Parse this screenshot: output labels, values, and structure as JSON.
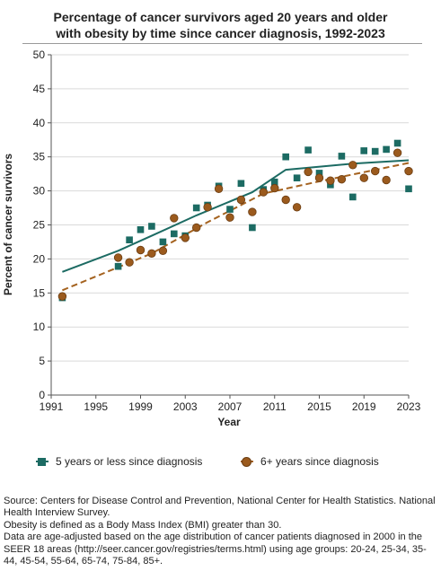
{
  "title_line1": "Percentage of cancer survivors aged 20 years and older",
  "title_line2": "with obesity by time since cancer diagnosis, 1992-2023",
  "legend": {
    "series1": "5 years or less since diagnosis",
    "series2": "6+ years since diagnosis"
  },
  "notes": [
    "Source: Centers for Disease Control and Prevention, National Center for Health Statistics. National Health Interview Survey.",
    "Obesity is defined as a Body Mass Index (BMI) greater than 30.",
    "Data are age-adjusted based on the age distribution of cancer patients diagnosed in 2000 in the SEER 18 areas (http://seer.cancer.gov/registries/terms.html) using age groups: 20-24, 25-34, 35-44, 45-54, 55-64, 65-74, 75-84, 85+."
  ],
  "colors": {
    "series1": "#1c6b63",
    "series2": "#9b5a1d",
    "series2_trend": "#a4621f"
  },
  "chart_data": {
    "type": "scatter",
    "title": "Percentage of cancer survivors aged 20 years and older with obesity by time since cancer diagnosis, 1992-2023",
    "xlabel": "Year",
    "ylabel": "Percent of cancer survivors",
    "xlim": [
      1991,
      2023
    ],
    "ylim": [
      0,
      50
    ],
    "xticks": [
      1991,
      1995,
      1999,
      2003,
      2007,
      2011,
      2015,
      2019,
      2023
    ],
    "yticks": [
      0,
      5,
      10,
      15,
      20,
      25,
      30,
      35,
      40,
      45,
      50
    ],
    "grid": "y",
    "legend_position": "bottom",
    "series": [
      {
        "name": "5 years or less since diagnosis",
        "marker": "square",
        "trend_style": "solid",
        "x": [
          1992,
          1997,
          1998,
          1999,
          2000,
          2001,
          2002,
          2003,
          2004,
          2005,
          2006,
          2007,
          2008,
          2009,
          2010,
          2011,
          2012,
          2013,
          2014,
          2015,
          2016,
          2017,
          2018,
          2019,
          2020,
          2021,
          2022,
          2023
        ],
        "y": [
          14.3,
          18.9,
          22.8,
          24.3,
          24.8,
          22.5,
          23.7,
          23.4,
          27.5,
          27.9,
          30.7,
          27.3,
          31.1,
          24.6,
          30.2,
          31.3,
          35.0,
          31.9,
          36.0,
          32.6,
          30.9,
          35.1,
          29.1,
          35.9,
          35.8,
          36.1,
          37.0,
          30.3
        ],
        "trend": {
          "x": [
            1992,
            1997,
            2000,
            2004,
            2009,
            2012,
            2018,
            2023
          ],
          "y": [
            18.1,
            21.2,
            23.4,
            26.4,
            29.8,
            33.1,
            34.0,
            34.5
          ]
        }
      },
      {
        "name": "6+ years since diagnosis",
        "marker": "circle",
        "trend_style": "dashed",
        "x": [
          1992,
          1997,
          1998,
          1999,
          2000,
          2001,
          2002,
          2003,
          2004,
          2005,
          2006,
          2007,
          2008,
          2009,
          2010,
          2011,
          2012,
          2013,
          2014,
          2015,
          2016,
          2017,
          2018,
          2019,
          2020,
          2021,
          2022,
          2023
        ],
        "y": [
          14.5,
          20.2,
          19.5,
          21.3,
          20.8,
          21.2,
          26.0,
          23.1,
          24.6,
          27.6,
          30.3,
          26.1,
          28.7,
          26.9,
          29.8,
          30.4,
          28.7,
          27.6,
          32.8,
          31.9,
          31.5,
          31.7,
          33.8,
          31.9,
          32.9,
          31.6,
          35.6,
          32.9
        ],
        "trend": {
          "x": [
            1992,
            2000,
            2005,
            2010,
            2015,
            2023
          ],
          "y": [
            15.4,
            20.8,
            25.4,
            29.6,
            31.4,
            34.1
          ]
        }
      }
    ]
  }
}
